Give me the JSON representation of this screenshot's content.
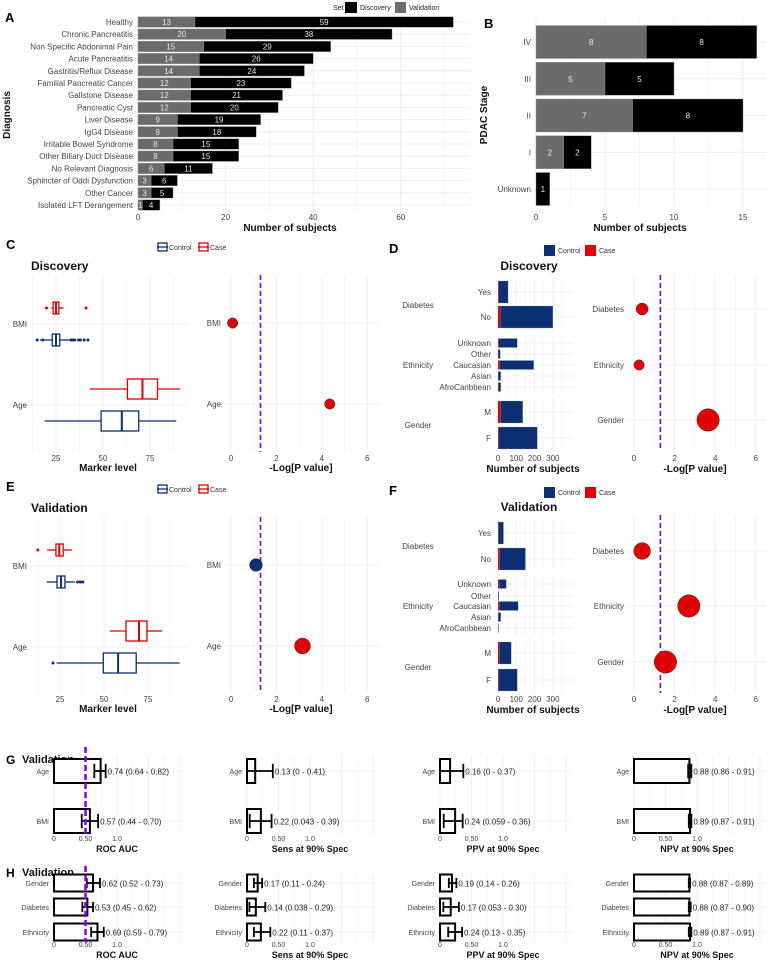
{
  "colors": {
    "control": "#0b2f72",
    "case": "#e00000",
    "validation": "#6b6b6b",
    "discovery": "#000000",
    "threshold": "#7b00ff",
    "grid": "#e6e6e6"
  },
  "chart_data": [
    {
      "panel": "A",
      "type": "bar",
      "orientation": "horizontal",
      "stacked": true,
      "xlabel": "Number of subjects",
      "ylabel": "Diagnosis",
      "xlim": [
        0,
        72
      ],
      "xticks": [
        0,
        20,
        40,
        60
      ],
      "grid": true,
      "legend": {
        "title": "Set",
        "entries": [
          "Discovery",
          "Validation"
        ],
        "placement": "top"
      },
      "categories": [
        "Healthy",
        "Chronic Pancreatitis",
        "Non Specific Abdonimal Pain",
        "Acute Pancreatitis",
        "Gastritis/Reflux Disease",
        "Familial Pancreatic Cancer",
        "Gallstone Disease",
        "Pancreatic Cyst",
        "Liver Disease",
        "IgG4 Disease",
        "Irritable Bowel Syndrome",
        "Other Biliary Duct Disease",
        "No Relevant Diagnosis",
        "Sphincter of Oddi Dysfunction",
        "Other Cancer",
        "Isolated LFT Derangement"
      ],
      "series": [
        {
          "name": "Validation",
          "color": "#6b6b6b",
          "values": [
            13,
            20,
            15,
            14,
            14,
            12,
            12,
            12,
            9,
            9,
            8,
            8,
            6,
            3,
            3,
            1
          ]
        },
        {
          "name": "Discovery",
          "color": "#000000",
          "values": [
            59,
            38,
            29,
            26,
            24,
            23,
            21,
            20,
            19,
            18,
            15,
            15,
            11,
            6,
            5,
            4
          ]
        }
      ]
    },
    {
      "panel": "B",
      "type": "bar",
      "orientation": "horizontal",
      "stacked": true,
      "xlabel": "Number of subjects",
      "ylabel": "PDAC Stage",
      "xlim": [
        0,
        16
      ],
      "xticks": [
        0,
        5,
        10,
        15
      ],
      "grid": true,
      "categories": [
        "IV",
        "III",
        "II",
        "I",
        "Unknown"
      ],
      "series": [
        {
          "name": "Validation",
          "color": "#6b6b6b",
          "values": [
            8,
            5,
            7,
            2,
            0
          ]
        },
        {
          "name": "Discovery",
          "color": "#000000",
          "values": [
            8,
            5,
            8,
            2,
            1
          ]
        }
      ]
    },
    {
      "panel": "C",
      "type": "boxplot",
      "title": "Discovery",
      "xlabel": "Marker level",
      "xticks": [
        25,
        50,
        75
      ],
      "legend": [
        "Control",
        "Case"
      ],
      "categories": [
        "BMI",
        "Age"
      ],
      "boxes": [
        {
          "category": "BMI",
          "group": "Case",
          "whisker_low": 22.5,
          "q1": 23.5,
          "median": 25,
          "q3": 26.5,
          "whisker_high": 29,
          "outliers": [
            20,
            41
          ]
        },
        {
          "category": "BMI",
          "group": "Control",
          "whisker_low": 16.5,
          "q1": 23,
          "median": 25,
          "q3": 27,
          "whisker_high": 32.5,
          "outliers": [
            15,
            18,
            33,
            34,
            35,
            37,
            38,
            40,
            42
          ]
        },
        {
          "category": "Age",
          "group": "Case",
          "whisker_low": 43,
          "q1": 63,
          "median": 71,
          "q3": 79,
          "whisker_high": 91,
          "outliers": []
        },
        {
          "category": "Age",
          "group": "Control",
          "whisker_low": 19,
          "q1": 49,
          "median": 60,
          "q3": 69,
          "whisker_high": 89,
          "outliers": []
        }
      ]
    },
    {
      "panel": "C-right",
      "type": "scatter",
      "xlabel": "-Log[P value]",
      "xticks": [
        0,
        2,
        4,
        6
      ],
      "xlim": [
        0,
        6.5
      ],
      "threshold": 1.3,
      "categories": [
        "BMI",
        "Age"
      ],
      "points": [
        {
          "label": "BMI",
          "value": 0.07,
          "relative_size": 1.3,
          "group": "Case"
        },
        {
          "label": "Age",
          "value": 4.35,
          "relative_size": 1.3,
          "group": "Case"
        }
      ]
    },
    {
      "panel": "D",
      "type": "bar",
      "stacked": true,
      "title": "Discovery",
      "xlabel": "Number of subjects",
      "xticks": [
        0,
        100,
        200,
        300
      ],
      "legend": [
        "Control",
        "Case"
      ],
      "groups": [
        {
          "name": "Diabetes",
          "rows": [
            {
              "label": "Yes",
              "case": 4,
              "control": 51
            },
            {
              "label": "No",
              "case": 12,
              "control": 288
            }
          ]
        },
        {
          "name": "Ethnicity",
          "rows": [
            {
              "label": "Unknown",
              "case": 5,
              "control": 100
            },
            {
              "label": "Other",
              "case": 1,
              "control": 11
            },
            {
              "label": "Caucasian",
              "case": 10,
              "control": 185
            },
            {
              "label": "Asian",
              "case": 2,
              "control": 13
            },
            {
              "label": "AfroCaribbean",
              "case": 1,
              "control": 14
            }
          ]
        },
        {
          "name": "Gender",
          "rows": [
            {
              "label": "M",
              "case": 15,
              "control": 120
            },
            {
              "label": "F",
              "case": 5,
              "control": 210
            }
          ]
        }
      ]
    },
    {
      "panel": "D-right",
      "type": "scatter",
      "xlabel": "-Log[P value]",
      "xticks": [
        0,
        2,
        4,
        6
      ],
      "xlim": [
        0,
        6.5
      ],
      "threshold": 1.3,
      "points": [
        {
          "label": "Diabetes",
          "value": 0.4,
          "relative_size": 1.5,
          "group": "Case"
        },
        {
          "label": "Ethnicity",
          "value": 0.25,
          "relative_size": 1.3,
          "group": "Case"
        },
        {
          "label": "Gender",
          "value": 3.65,
          "relative_size": 2.8,
          "group": "Case"
        }
      ]
    },
    {
      "panel": "E",
      "type": "boxplot",
      "title": "Validation",
      "xlabel": "Marker level",
      "xticks": [
        25,
        50,
        75
      ],
      "legend": [
        "Control",
        "Case"
      ],
      "categories": [
        "BMI",
        "Age"
      ],
      "boxes": [
        {
          "category": "BMI",
          "group": "Case",
          "whisker_low": 17.7,
          "q1": 22.7,
          "median": 24.6,
          "q3": 26.8,
          "whisker_high": 31.8,
          "outliers": [
            12.4
          ]
        },
        {
          "category": "BMI",
          "group": "Control",
          "whisker_low": 17.5,
          "q1": 23.3,
          "median": 25.6,
          "q3": 27.8,
          "whisker_high": 33.5,
          "outliers": [
            35,
            36.5,
            38
          ]
        },
        {
          "category": "Age",
          "group": "Case",
          "whisker_low": 53.4,
          "q1": 62.5,
          "median": 69.9,
          "q3": 74.4,
          "whisker_high": 83,
          "outliers": []
        },
        {
          "category": "Age",
          "group": "Control",
          "whisker_low": 23,
          "q1": 49.6,
          "median": 58,
          "q3": 68.3,
          "whisker_high": 93,
          "outliers": [
            21
          ]
        }
      ]
    },
    {
      "panel": "E-right",
      "type": "scatter",
      "xlabel": "-Log[P value]",
      "xticks": [
        0,
        2,
        4,
        6
      ],
      "xlim": [
        0,
        6.5
      ],
      "threshold": 1.3,
      "categories": [
        "BMI",
        "Age"
      ],
      "points": [
        {
          "label": "BMI",
          "value": 1.1,
          "relative_size": 1.6,
          "group": "Control"
        },
        {
          "label": "Age",
          "value": 3.15,
          "relative_size": 2.0,
          "group": "Case"
        }
      ]
    },
    {
      "panel": "F",
      "type": "bar",
      "stacked": true,
      "title": "Validation",
      "xlabel": "Number of subjects",
      "xticks": [
        0,
        100,
        200,
        300
      ],
      "legend": [
        "Control",
        "Case"
      ],
      "groups": [
        {
          "name": "Diabetes",
          "rows": [
            {
              "label": "Yes",
              "case": 3,
              "control": 27
            },
            {
              "label": "No",
              "case": 10,
              "control": 140
            }
          ]
        },
        {
          "name": "Ethnicity",
          "rows": [
            {
              "label": "Unknown",
              "case": 6,
              "control": 39
            },
            {
              "label": "Other",
              "case": 1,
              "control": 4
            },
            {
              "label": "Caucasian",
              "case": 8,
              "control": 102
            },
            {
              "label": "Asian",
              "case": 2,
              "control": 13
            },
            {
              "label": "AfroCaribbean",
              "case": 0,
              "control": 3
            }
          ]
        },
        {
          "name": "Gender",
          "rows": [
            {
              "label": "M",
              "case": 8,
              "control": 64
            },
            {
              "label": "F",
              "case": 5,
              "control": 100
            }
          ]
        }
      ]
    },
    {
      "panel": "F-right",
      "type": "scatter",
      "xlabel": "-Log[P value]",
      "xticks": [
        0,
        2,
        4,
        6
      ],
      "xlim": [
        0,
        6.5
      ],
      "threshold": 1.3,
      "points": [
        {
          "label": "Diabetes",
          "value": 0.4,
          "relative_size": 2.1,
          "group": "Case"
        },
        {
          "label": "Ethnicity",
          "value": 2.7,
          "relative_size": 2.8,
          "group": "Case"
        },
        {
          "label": "Gender",
          "value": 1.55,
          "relative_size": 2.8,
          "group": "Case"
        }
      ]
    },
    {
      "panel": "G",
      "type": "bar",
      "title": "Validation",
      "subplots": [
        {
          "xlabel": "ROC AUC",
          "reference": 0.5,
          "xticks": [
            0,
            0.5,
            1.0
          ],
          "xtick_labels": [
            "0",
            "0.50",
            "1.0"
          ],
          "rows": [
            {
              "label": "Age",
              "value": 0.74,
              "lo": 0.64,
              "hi": 0.82,
              "text": "0.74 (0.64 - 0.82)"
            },
            {
              "label": "BMI",
              "value": 0.57,
              "lo": 0.44,
              "hi": 0.7,
              "text": "0.57 (0.44 - 0.70)"
            }
          ]
        },
        {
          "xlabel": "Sens at 90% Spec",
          "xticks": [
            0,
            0.5,
            1.0
          ],
          "xtick_labels": [
            "0",
            "0.50",
            "1.0"
          ],
          "rows": [
            {
              "label": "Age",
              "value": 0.13,
              "lo": 0,
              "hi": 0.41,
              "text": "0.13 (0 - 0.41)"
            },
            {
              "label": "BMI",
              "value": 0.22,
              "lo": 0.043,
              "hi": 0.39,
              "text": "0.22 (0.043 - 0.39)"
            }
          ]
        },
        {
          "xlabel": "PPV at 90% Spec",
          "xticks": [
            0,
            0.5,
            1.0
          ],
          "xtick_labels": [
            "0",
            "0.50",
            "1.0"
          ],
          "rows": [
            {
              "label": "Age",
              "value": 0.16,
              "lo": 0,
              "hi": 0.37,
              "text": "0.16 (0 - 0.37)"
            },
            {
              "label": "BMI",
              "value": 0.24,
              "lo": 0.059,
              "hi": 0.36,
              "text": "0.24 (0.059 - 0.36)"
            }
          ]
        },
        {
          "xlabel": "NPV at 90% Spec",
          "xticks": [
            0,
            0.5,
            1.0
          ],
          "xtick_labels": [
            "0",
            "0.50",
            "1.0"
          ],
          "rows": [
            {
              "label": "Age",
              "value": 0.88,
              "lo": 0.86,
              "hi": 0.91,
              "text": "0.88 (0.86 - 0.91)"
            },
            {
              "label": "BMI",
              "value": 0.89,
              "lo": 0.87,
              "hi": 0.91,
              "text": "0.89 (0.87 - 0.91)"
            }
          ]
        }
      ]
    },
    {
      "panel": "H",
      "type": "bar",
      "title": "Validation",
      "subplots": [
        {
          "xlabel": "ROC AUC",
          "reference": 0.5,
          "xticks": [
            0,
            0.5,
            1.0
          ],
          "xtick_labels": [
            "0",
            "0.50",
            "1.0"
          ],
          "rows": [
            {
              "label": "Gender",
              "value": 0.62,
              "lo": 0.52,
              "hi": 0.73,
              "text": "0.62 (0.52 - 0.73)"
            },
            {
              "label": "Diabetes",
              "value": 0.53,
              "lo": 0.45,
              "hi": 0.62,
              "text": "0.53 (0.45 - 0.62)"
            },
            {
              "label": "Ethnicity",
              "value": 0.69,
              "lo": 0.59,
              "hi": 0.79,
              "text": "0.69 (0.59 - 0.79)"
            }
          ]
        },
        {
          "xlabel": "Sens at 90% Spec",
          "xticks": [
            0,
            0.5,
            1.0
          ],
          "xtick_labels": [
            "0",
            "0.50",
            "1.0"
          ],
          "rows": [
            {
              "label": "Gender",
              "value": 0.17,
              "lo": 0.11,
              "hi": 0.24,
              "text": "0.17 (0.11 - 0.24)"
            },
            {
              "label": "Diabetes",
              "value": 0.14,
              "lo": 0.038,
              "hi": 0.29,
              "text": "0.14 (0.038 - 0.29)"
            },
            {
              "label": "Ethnicity",
              "value": 0.22,
              "lo": 0.11,
              "hi": 0.37,
              "text": "0.22 (0.11 - 0.37)"
            }
          ]
        },
        {
          "xlabel": "PPV at 90% Spec",
          "xticks": [
            0,
            0.5,
            1.0
          ],
          "xtick_labels": [
            "0",
            "0.50",
            "1.0"
          ],
          "rows": [
            {
              "label": "Gender",
              "value": 0.19,
              "lo": 0.14,
              "hi": 0.26,
              "text": "0.19 (0.14 - 0.26)"
            },
            {
              "label": "Diabetes",
              "value": 0.17,
              "lo": 0.053,
              "hi": 0.3,
              "text": "0.17 (0.053 - 0.30)"
            },
            {
              "label": "Ethnicity",
              "value": 0.24,
              "lo": 0.13,
              "hi": 0.35,
              "text": "0.24 (0.13 - 0.35)"
            }
          ]
        },
        {
          "xlabel": "NPV at 90% Spec",
          "xticks": [
            0,
            0.5,
            1.0
          ],
          "xtick_labels": [
            "0",
            "0.50",
            "1.0"
          ],
          "rows": [
            {
              "label": "Gender",
              "value": 0.88,
              "lo": 0.87,
              "hi": 0.89,
              "text": "0.88 (0.87 - 0.89)"
            },
            {
              "label": "Diabetes",
              "value": 0.88,
              "lo": 0.87,
              "hi": 0.9,
              "text": "0.88 (0.87 - 0.90)"
            },
            {
              "label": "Ethnicity",
              "value": 0.89,
              "lo": 0.87,
              "hi": 0.91,
              "text": "0.89 (0.87 - 0.91)"
            }
          ]
        }
      ]
    }
  ]
}
